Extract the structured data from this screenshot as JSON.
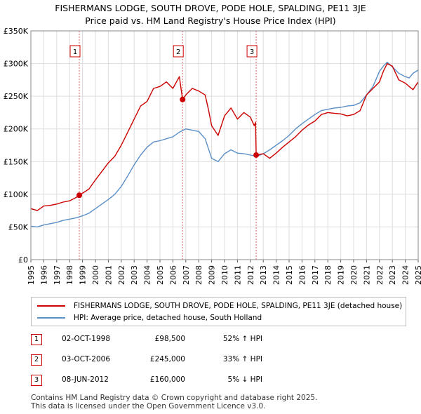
{
  "title_line1": "FISHERMANS LODGE, SOUTH DROVE, PODE HOLE, SPALDING, PE11 3JE",
  "title_line2": "Price paid vs. HM Land Registry's House Price Index (HPI)",
  "colors": {
    "property": "#cc0000",
    "hpi": "#5b8fc7",
    "vline": "#e06060",
    "marker": "#cc0000"
  },
  "chart_data": {
    "type": "line",
    "xlim": [
      1995,
      2025
    ],
    "ylim": [
      0,
      350000
    ],
    "yticks": [
      0,
      50000,
      100000,
      150000,
      200000,
      250000,
      300000,
      350000
    ],
    "ytick_labels": [
      "£0",
      "£50K",
      "£100K",
      "£150K",
      "£200K",
      "£250K",
      "£300K",
      "£350K"
    ],
    "xticks": [
      1995,
      1996,
      1997,
      1998,
      1999,
      2000,
      2001,
      2002,
      2003,
      2004,
      2005,
      2006,
      2007,
      2008,
      2009,
      2010,
      2011,
      2012,
      2013,
      2014,
      2015,
      2016,
      2017,
      2018,
      2019,
      2020,
      2021,
      2022,
      2023,
      2024,
      2025
    ],
    "xtick_labels": [
      "1995",
      "1996",
      "1997",
      "1998",
      "1999",
      "2000",
      "2001",
      "2002",
      "2003",
      "2004",
      "2005",
      "2006",
      "2007",
      "2008",
      "2009",
      "2010",
      "2011",
      "2012",
      "2013",
      "2014",
      "2015",
      "2016",
      "2017",
      "2018",
      "2019",
      "2020",
      "2021",
      "2022",
      "2023",
      "2024",
      "2025"
    ],
    "series": [
      {
        "name": "FISHERMANS LODGE, SOUTH DROVE, PODE HOLE, SPALDING, PE11 3JE (detached house)",
        "color": "#cc0000",
        "x": [
          1995.0,
          1995.5,
          1996.0,
          1996.5,
          1997.0,
          1997.5,
          1998.0,
          1998.5,
          1998.75,
          1999.5,
          2000.0,
          2000.5,
          2001.0,
          2001.5,
          2002.0,
          2002.5,
          2003.0,
          2003.5,
          2004.0,
          2004.5,
          2005.0,
          2005.5,
          2006.0,
          2006.5,
          2006.75,
          2007.0,
          2007.5,
          2008.0,
          2008.5,
          2008.75,
          2009.0,
          2009.5,
          2010.0,
          2010.5,
          2011.0,
          2011.5,
          2012.0,
          2012.3,
          2012.4,
          2012.45,
          2013.0,
          2013.5,
          2014.0,
          2014.5,
          2015.0,
          2015.5,
          2016.0,
          2016.5,
          2017.0,
          2017.5,
          2018.0,
          2018.5,
          2019.0,
          2019.5,
          2020.0,
          2020.5,
          2021.0,
          2021.5,
          2022.0,
          2022.3,
          2022.6,
          2023.0,
          2023.5,
          2024.0,
          2024.3,
          2024.6,
          2025.0
        ],
        "values": [
          78000,
          75000,
          82000,
          83000,
          85000,
          88000,
          90000,
          95000,
          98500,
          108000,
          122000,
          135000,
          148000,
          158000,
          175000,
          195000,
          215000,
          235000,
          242000,
          262000,
          265000,
          272000,
          262000,
          280000,
          245000,
          252000,
          262000,
          258000,
          252000,
          230000,
          205000,
          190000,
          220000,
          232000,
          215000,
          225000,
          218000,
          205000,
          210000,
          160000,
          162000,
          155000,
          163000,
          172000,
          180000,
          188000,
          198000,
          206000,
          212000,
          222000,
          225000,
          224000,
          223000,
          220000,
          222000,
          228000,
          252000,
          262000,
          272000,
          288000,
          300000,
          296000,
          275000,
          270000,
          265000,
          260000,
          272000
        ]
      },
      {
        "name": "HPI: Average price, detached house, South Holland",
        "color": "#5b8fc7",
        "x": [
          1995.0,
          1995.5,
          1996.0,
          1996.5,
          1997.0,
          1997.5,
          1998.0,
          1998.5,
          1999.0,
          1999.5,
          2000.0,
          2000.5,
          2001.0,
          2001.5,
          2002.0,
          2002.5,
          2003.0,
          2003.5,
          2004.0,
          2004.5,
          2005.0,
          2005.5,
          2006.0,
          2006.5,
          2007.0,
          2007.5,
          2008.0,
          2008.5,
          2008.75,
          2009.0,
          2009.5,
          2010.0,
          2010.5,
          2011.0,
          2011.5,
          2012.0,
          2012.5,
          2013.0,
          2013.5,
          2014.0,
          2014.5,
          2015.0,
          2015.5,
          2016.0,
          2016.5,
          2017.0,
          2017.5,
          2018.0,
          2018.5,
          2019.0,
          2019.5,
          2020.0,
          2020.5,
          2021.0,
          2021.5,
          2022.0,
          2022.3,
          2022.6,
          2023.0,
          2023.5,
          2024.0,
          2024.3,
          2024.6,
          2025.0
        ],
        "values": [
          51000,
          50000,
          53000,
          55000,
          57000,
          60000,
          62000,
          64000,
          67000,
          71000,
          78000,
          85000,
          92000,
          100000,
          112000,
          128000,
          145000,
          160000,
          172000,
          180000,
          182000,
          185000,
          188000,
          195000,
          200000,
          198000,
          196000,
          185000,
          170000,
          155000,
          150000,
          162000,
          168000,
          163000,
          162000,
          160000,
          158000,
          162000,
          168000,
          175000,
          182000,
          190000,
          200000,
          208000,
          215000,
          222000,
          228000,
          230000,
          232000,
          233000,
          235000,
          236000,
          240000,
          252000,
          265000,
          288000,
          296000,
          302000,
          295000,
          285000,
          280000,
          278000,
          285000,
          290000
        ]
      }
    ],
    "sales_markers": [
      {
        "label": "1",
        "x": 1998.75,
        "y": 98500
      },
      {
        "label": "2",
        "x": 2006.75,
        "y": 245000
      },
      {
        "label": "3",
        "x": 2012.45,
        "y": 160000
      }
    ]
  },
  "legend": {
    "property": "FISHERMANS LODGE, SOUTH DROVE, PODE HOLE, SPALDING, PE11 3JE (detached house)",
    "hpi": "HPI: Average price, detached house, South Holland"
  },
  "sales": [
    {
      "num": "1",
      "date": "02-OCT-1998",
      "price": "£98,500",
      "hpi": "52% ↑ HPI"
    },
    {
      "num": "2",
      "date": "03-OCT-2006",
      "price": "£245,000",
      "hpi": "33% ↑ HPI"
    },
    {
      "num": "3",
      "date": "08-JUN-2012",
      "price": "£160,000",
      "hpi": "5% ↓ HPI"
    }
  ],
  "footer_line1": "Contains HM Land Registry data © Crown copyright and database right 2025.",
  "footer_line2": "This data is licensed under the Open Government Licence v3.0."
}
